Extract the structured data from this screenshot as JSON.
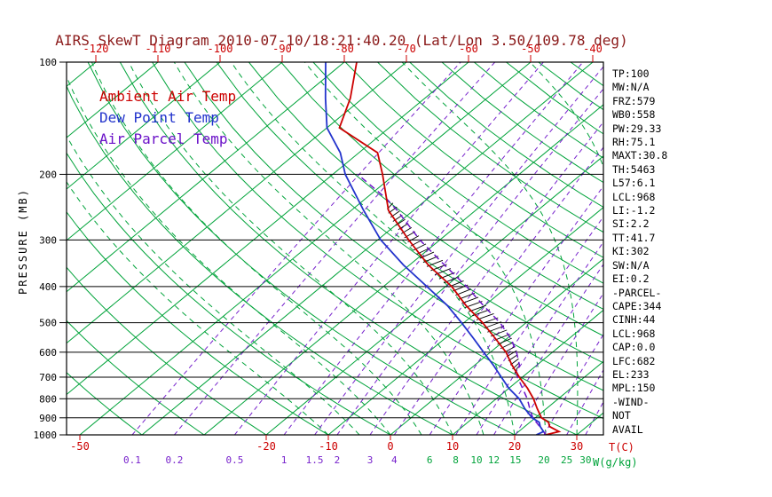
{
  "title": "AIRS SkewT Diagram 2010-07-10/18:21:40.20 (Lat/Lon 3.50/109.78 deg)",
  "colors": {
    "title": "#8b1a1a",
    "green": "#00a33a",
    "purple": "#7722cc",
    "red": "#cc0000",
    "blue": "#2233cc",
    "parcel": "#6a11c8",
    "black": "#000000"
  },
  "legend": {
    "items": [
      {
        "label": "Ambient Air Temp",
        "color": "#cc0000"
      },
      {
        "label": "Dew Point Temp",
        "color": "#2233cc"
      },
      {
        "label": "Air Parcel Temp",
        "color": "#6a11c8"
      }
    ]
  },
  "axes": {
    "pressure_axis_label": "PRESSURE (MB)",
    "pressure_ticks": [
      100,
      200,
      300,
      400,
      500,
      600,
      700,
      800,
      900,
      1000
    ],
    "top_temp_ticks_c": [
      -120,
      -110,
      -100,
      -90,
      -80,
      -70,
      -60,
      -50,
      -40
    ],
    "bottom_temp_ticks_c": [
      -50,
      -20,
      -10,
      0,
      10,
      20,
      30
    ],
    "temp_unit_label": "T(C)",
    "mixing_unit_label": "W(g/kg)",
    "mixing_ratio_purple_labels": [
      0.1,
      0.2,
      0.5,
      1,
      1.5,
      2,
      3,
      4
    ],
    "mixing_ratio_green_labels": [
      6,
      8,
      10,
      12,
      15,
      20,
      25,
      30
    ]
  },
  "stats_panel": {
    "lines": [
      "TP:100",
      "MW:N/A",
      "FRZ:579",
      "WB0:558",
      "PW:29.33",
      "RH:75.1",
      "MAXT:30.8",
      "TH:5463",
      "L57:6.1",
      "LCL:968",
      "LI:-1.2",
      "SI:2.2",
      "TT:41.7",
      "KI:302",
      "SW:N/A",
      "EI:0.2",
      "-PARCEL-",
      "CAPE:344",
      "CINH:44",
      "LCL:968",
      "CAP:0.0",
      "LFC:682",
      "EL:233",
      "MPL:150",
      "-WIND-",
      "NOT",
      "AVAIL"
    ]
  },
  "chart_data": {
    "type": "line",
    "subtype": "skew-t log-p sounding",
    "title": "AIRS SkewT Diagram 2010-07-10/18:21:40.20 (Lat/Lon 3.50/109.78 deg)",
    "xlabel": "T(C)",
    "ylabel": "PRESSURE (MB)",
    "pressure_range_mb": [
      100,
      1000
    ],
    "pressure_scale": "log",
    "skew": "isotherms slanted up-right 45deg",
    "background": {
      "isotherms_c": {
        "min": -160,
        "max": 50,
        "step": 10
      },
      "dry_adiabats_c": {
        "min": -40,
        "max": 200,
        "step": 10
      },
      "moist_adiabats_c": {
        "min": -10,
        "max": 40,
        "step": 5
      },
      "mixing_ratio_g_kg": [
        0.1,
        0.2,
        0.5,
        1,
        1.5,
        2,
        3,
        4,
        6,
        8,
        10,
        12,
        15,
        20,
        25,
        30
      ]
    },
    "cape_hatch": {
      "from_mb": 670,
      "to_mb": 240
    },
    "series": [
      {
        "name": "Ambient Air Temp",
        "color": "#cc0000",
        "line_style": "solid",
        "points_p_t": [
          [
            1000,
            25
          ],
          [
            980,
            26.5
          ],
          [
            950,
            24
          ],
          [
            925,
            23
          ],
          [
            900,
            21
          ],
          [
            850,
            18.5
          ],
          [
            800,
            16
          ],
          [
            750,
            13
          ],
          [
            700,
            9.5
          ],
          [
            650,
            6
          ],
          [
            600,
            2.5
          ],
          [
            550,
            -2
          ],
          [
            500,
            -7
          ],
          [
            450,
            -13
          ],
          [
            400,
            -19
          ],
          [
            350,
            -27
          ],
          [
            300,
            -35
          ],
          [
            250,
            -44
          ],
          [
            200,
            -52
          ],
          [
            175,
            -57
          ],
          [
            150,
            -68
          ],
          [
            125,
            -72
          ],
          [
            100,
            -78
          ]
        ]
      },
      {
        "name": "Dew Point Temp",
        "color": "#2233cc",
        "line_style": "solid",
        "points_p_t": [
          [
            1000,
            23.5
          ],
          [
            980,
            24
          ],
          [
            950,
            22.5
          ],
          [
            925,
            21.5
          ],
          [
            900,
            19.5
          ],
          [
            850,
            16.5
          ],
          [
            800,
            13.7
          ],
          [
            750,
            10
          ],
          [
            700,
            6.6
          ],
          [
            650,
            3
          ],
          [
            600,
            -1.1
          ],
          [
            550,
            -5.5
          ],
          [
            500,
            -10.4
          ],
          [
            450,
            -16
          ],
          [
            400,
            -23
          ],
          [
            350,
            -31
          ],
          [
            300,
            -39.5
          ],
          [
            250,
            -48
          ],
          [
            200,
            -58
          ],
          [
            175,
            -63
          ],
          [
            150,
            -70
          ],
          [
            125,
            -76
          ],
          [
            100,
            -83
          ]
        ]
      },
      {
        "name": "Air Parcel Temp",
        "color": "#6a11c8",
        "line_style": "dashed",
        "points_p_t": [
          [
            1000,
            25
          ],
          [
            968,
            23.4
          ],
          [
            900,
            19.6
          ],
          [
            850,
            17.3
          ],
          [
            800,
            15.0
          ],
          [
            750,
            12.2
          ],
          [
            700,
            9.2
          ],
          [
            682,
            8.3
          ],
          [
            650,
            7.2
          ],
          [
            600,
            4.2
          ],
          [
            550,
            0.5
          ],
          [
            500,
            -4.2
          ],
          [
            450,
            -10.2
          ],
          [
            400,
            -16.6
          ],
          [
            350,
            -24.4
          ],
          [
            300,
            -33.2
          ],
          [
            250,
            -42.6
          ],
          [
            233,
            -46.5
          ],
          [
            200,
            -56
          ]
        ]
      }
    ]
  }
}
